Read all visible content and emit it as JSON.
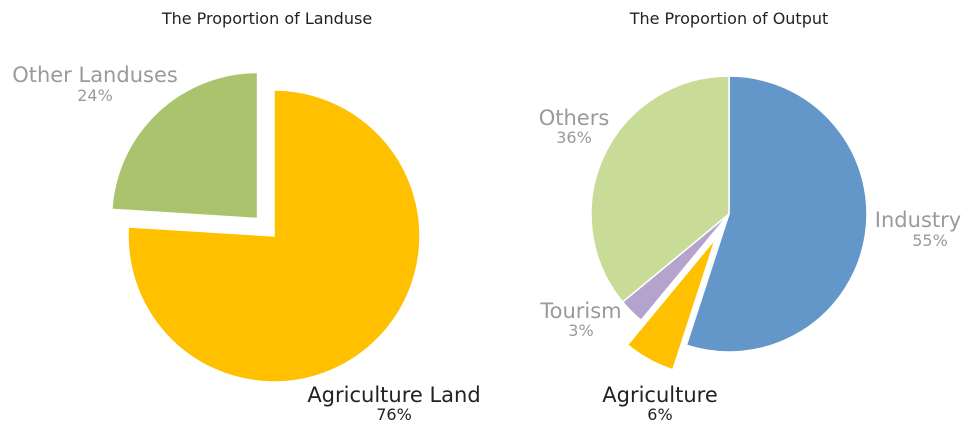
{
  "chart_data": [
    {
      "type": "pie",
      "title": "The Proportion of Landuse",
      "slices": [
        {
          "label": "Agriculture Land",
          "value": 76,
          "value_label": "76%",
          "color": "#FFC000",
          "label_color": "#222222",
          "exploded": false
        },
        {
          "label": "Other Landuses",
          "value": 24,
          "value_label": "24%",
          "color": "#A9C46C",
          "label_color": "#9A9A9A",
          "exploded": true
        }
      ],
      "legend": "none"
    },
    {
      "type": "pie",
      "title": "The Proportion of Output",
      "slices": [
        {
          "label": "Industry",
          "value": 55,
          "value_label": "55%",
          "color": "#6396C9",
          "label_color": "#9A9A9A",
          "exploded": false
        },
        {
          "label": "Agriculture",
          "value": 6,
          "value_label": "6%",
          "color": "#FFC000",
          "label_color": "#222222",
          "exploded": true
        },
        {
          "label": "Tourism",
          "value": 3,
          "value_label": "3%",
          "color": "#B4A3CD",
          "label_color": "#9A9A9A",
          "exploded": false
        },
        {
          "label": "Others",
          "value": 36,
          "value_label": "36%",
          "color": "#C9DC97",
          "label_color": "#9A9A9A",
          "exploded": false
        }
      ],
      "legend": "none"
    }
  ]
}
